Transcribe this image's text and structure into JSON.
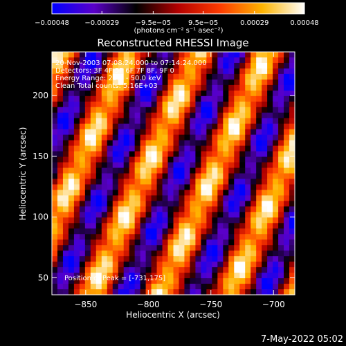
{
  "chart_data": {
    "type": "heatmap",
    "title": "Reconstructed RHESSI Image",
    "xlabel": "Heliocentric X (arcsec)",
    "ylabel": "Heliocentric Y (arcsec)",
    "xlim": [
      -877,
      -683
    ],
    "ylim": [
      36,
      236
    ],
    "xticks": [
      -850,
      -800,
      -750,
      -700
    ],
    "xtick_labels": [
      "−850",
      "−800",
      "−750",
      "−700"
    ],
    "yticks": [
      50,
      100,
      150,
      200
    ],
    "ytick_labels": [
      "50",
      "100",
      "150",
      "200"
    ],
    "colorbar": {
      "min": -0.00048,
      "max": 0.00048,
      "ticks": [
        -0.00048,
        -0.00029,
        -9.5e-05,
        9.5e-05,
        0.00029,
        0.00048
      ],
      "tick_labels": [
        "−0.00048",
        "−0.00029",
        "−9.5e−05",
        "9.5e−05",
        "0.00029",
        "0.00048"
      ],
      "unit_label": "(photons cm⁻² s⁻¹ asec⁻²)",
      "colors": [
        "#0000ff",
        "#5a00c8",
        "#000000",
        "#b40000",
        "#ff3c00",
        "#ffb400",
        "#ffffff"
      ]
    },
    "pattern": {
      "description_of_field": "diagonal fringe pattern of alternating positive (red/yellow) and negative (blue/purple) flux",
      "fringe_period_arcsec": 55,
      "fringe_slope_dx_per_dy": 0.43,
      "peak_position": [
        -731,
        175
      ]
    }
  },
  "annotations": {
    "time_range": "20-Nov-2003 07:08:24.000 to 07:14:24.000",
    "detectors": "Detectors: 3F 4F 5F 6F 7F 8F, 9F 0",
    "energy": "Energy Range: 25.0 - 50.0 keV",
    "method": "Clean     Total counts: 5.16E+03",
    "peak": "Position of Peak = [-731,175]"
  },
  "timestamp": "7-May-2022 05:02"
}
